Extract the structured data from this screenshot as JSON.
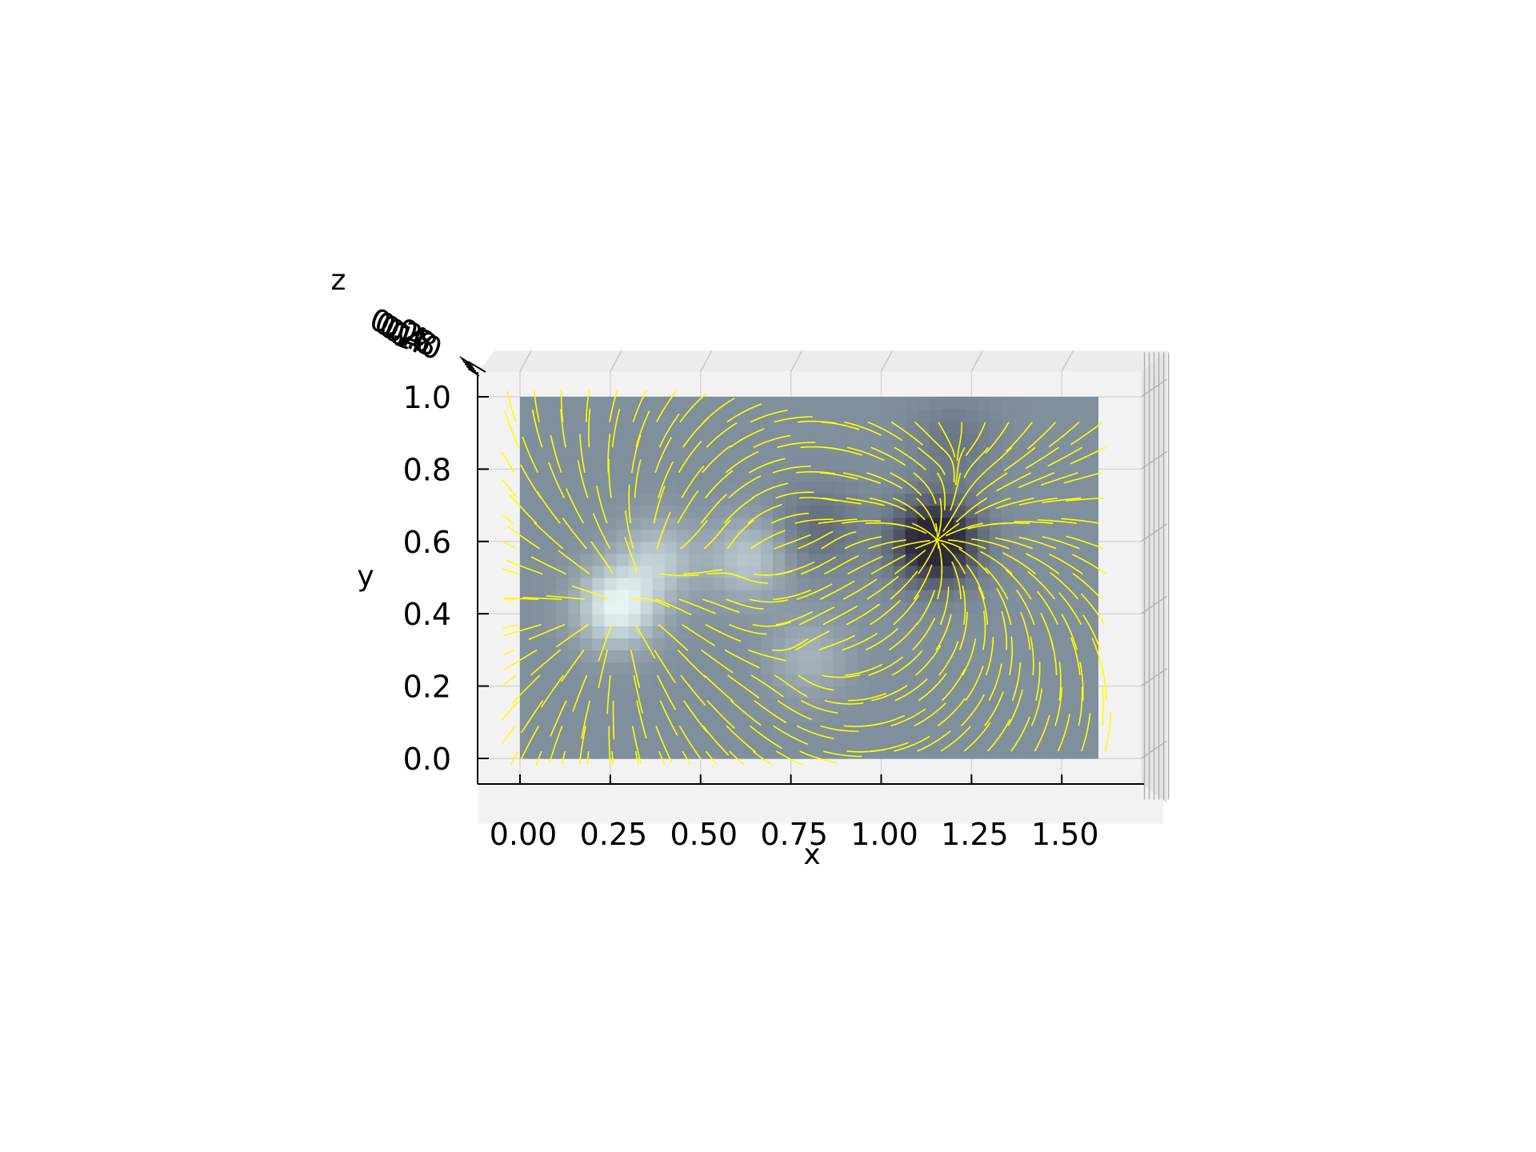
{
  "chart_data": {
    "type": "3d-streamline",
    "xlabel": "x",
    "ylabel": "y",
    "zlabel": "z",
    "x_ticks": [
      "0.00",
      "0.25",
      "0.50",
      "0.75",
      "1.00",
      "1.25",
      "1.50"
    ],
    "x_tick_values": [
      0.0,
      0.25,
      0.5,
      0.75,
      1.0,
      1.25,
      1.5
    ],
    "y_ticks": [
      "0.0",
      "0.2",
      "0.4",
      "0.6",
      "0.8",
      "1.0"
    ],
    "y_tick_values": [
      0.0,
      0.2,
      0.4,
      0.6,
      0.8,
      1.0
    ],
    "z_ticks": [
      "0.0",
      "0.2",
      "0.4",
      "0.6",
      "0.8",
      "1.0"
    ],
    "xlim": [
      -0.115,
      1.72
    ],
    "ylim": [
      -0.07,
      1.07
    ],
    "image_extent": {
      "x": [
        0.0,
        1.6
      ],
      "y": [
        0.0,
        1.0
      ]
    },
    "magnetogram_sources": [
      {
        "x": 0.27,
        "y": 0.42,
        "sign": 1,
        "strength": 1.0
      },
      {
        "x": 0.38,
        "y": 0.55,
        "sign": 1,
        "strength": 0.55
      },
      {
        "x": 0.63,
        "y": 0.55,
        "sign": 1,
        "strength": 0.55
      },
      {
        "x": 0.8,
        "y": 0.28,
        "sign": 1,
        "strength": 0.35
      },
      {
        "x": 1.15,
        "y": 0.6,
        "sign": -1,
        "strength": 1.4
      },
      {
        "x": 0.83,
        "y": 0.64,
        "sign": -1,
        "strength": 0.35
      },
      {
        "x": 1.2,
        "y": 0.87,
        "sign": -1,
        "strength": 0.25
      }
    ],
    "colormap": [
      "#2b2840",
      "#808f9c",
      "#e6f5f3"
    ],
    "streamline_color": "#ffff00",
    "pane_color": "#f2f2f2",
    "grid": true
  }
}
